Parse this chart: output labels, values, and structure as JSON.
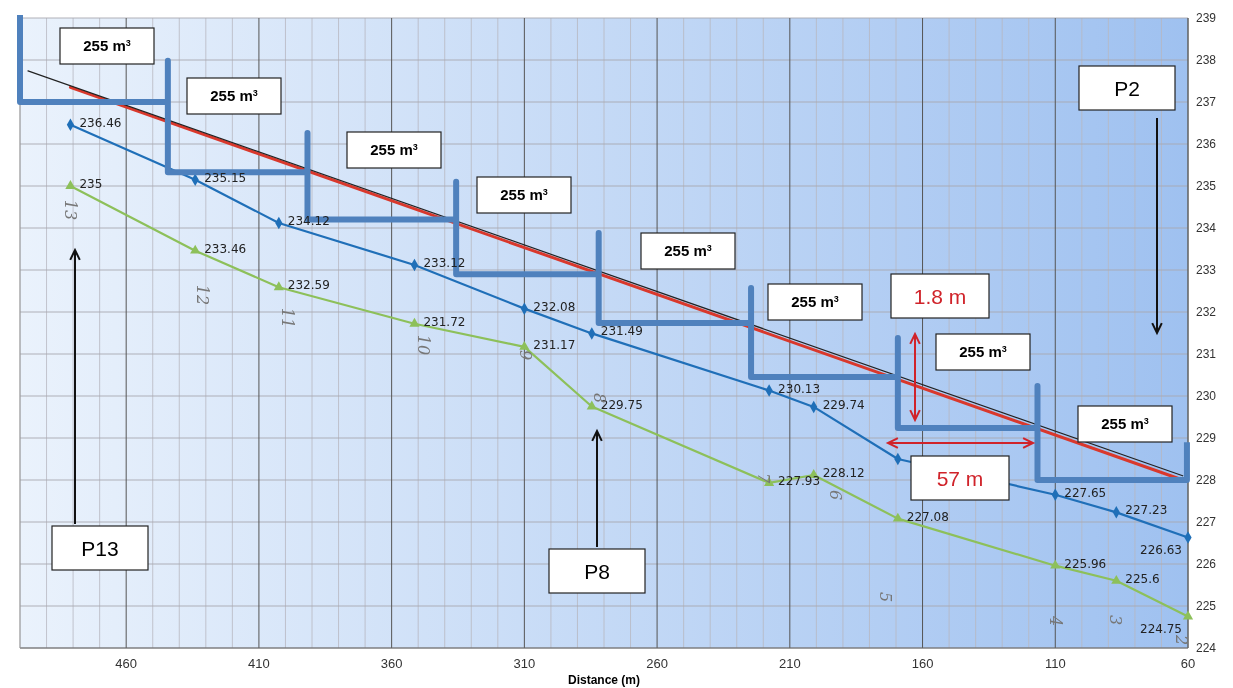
{
  "chart_data": {
    "type": "line",
    "xlabel": "Distance (m)",
    "xlim": [
      500,
      60
    ],
    "xticks": [
      460,
      410,
      360,
      310,
      260,
      210,
      160,
      110,
      60
    ],
    "ylim": [
      224,
      239
    ],
    "yticks": [
      224,
      225,
      226,
      227,
      228,
      229,
      230,
      231,
      232,
      233,
      234,
      235,
      236,
      237,
      238,
      239
    ],
    "grid": true,
    "series": [
      {
        "color": "#1f6fb8",
        "marker": "diamond",
        "x": [
          481,
          434,
          402.5,
          351.4,
          310,
          284.6,
          217.8,
          201,
          169.3,
          110,
          87,
          60
        ],
        "values": [
          236.46,
          235.15,
          234.12,
          233.12,
          232.08,
          231.49,
          230.13,
          229.74,
          228.5,
          227.65,
          227.23,
          226.63
        ],
        "value_labels": [
          "236.46",
          "235.15",
          "234.12",
          "233.12",
          "232.08",
          "231.49",
          "230.13",
          "229.74",
          null,
          "227.65",
          "227.23",
          "226.63"
        ]
      },
      {
        "color": "#8dc05a",
        "marker": "triangle",
        "x": [
          481,
          434,
          402.5,
          351.4,
          310,
          284.6,
          217.8,
          201,
          169.3,
          110,
          87,
          60
        ],
        "values": [
          235,
          233.46,
          232.59,
          231.72,
          231.17,
          229.75,
          227.93,
          228.12,
          227.08,
          225.96,
          225.6,
          224.75
        ],
        "value_labels": [
          "235",
          "233.46",
          "232.59",
          "231.72",
          "231.17",
          "229.75",
          "227.93",
          "228.12",
          "227.08",
          "225.96",
          "225.6",
          "224.75"
        ]
      },
      {
        "color": "#d9382c",
        "marker": "none",
        "x": [
          481,
          62
        ],
        "values": [
          237.35,
          228.0
        ]
      },
      {
        "color": "#222222",
        "marker": "none",
        "x": [
          497,
          62
        ],
        "values": [
          237.74,
          228.1
        ]
      },
      {
        "color": "#4f81bd",
        "marker": "none",
        "x": [
          500,
          500,
          444.3,
          444.3,
          444.3,
          391.7,
          391.7,
          391.7,
          335.7,
          335.7,
          335.7,
          282,
          282,
          282,
          224.6,
          224.6,
          224.6,
          169.3,
          169.3,
          169.3,
          116.7,
          116.7,
          116.7,
          60.4,
          60.4
        ],
        "values": [
          239,
          237.0,
          237.0,
          237.98,
          235.33,
          235.33,
          236.26,
          234.2,
          234.2,
          235.1,
          232.9,
          232.9,
          233.88,
          231.74,
          231.74,
          232.57,
          230.45,
          230.45,
          231.38,
          229.24,
          229.24,
          230.24,
          228.0,
          228.0,
          228.83
        ]
      }
    ],
    "annotations": [
      "255 m$^{3}$",
      "255 m$^{3}$",
      "255 m$^{3}$",
      "255 m$^{3}$",
      "255 m$^{3}$",
      "255 m$^{3}$",
      "255 m$^{3}$",
      "255 m$^{3}$",
      "1.8 m",
      "57 m",
      "P2",
      "P13",
      "P8",
      "13",
      "12",
      "11",
      "10",
      "9",
      "8",
      "7",
      "6",
      "5",
      "4",
      "3",
      "2"
    ]
  }
}
